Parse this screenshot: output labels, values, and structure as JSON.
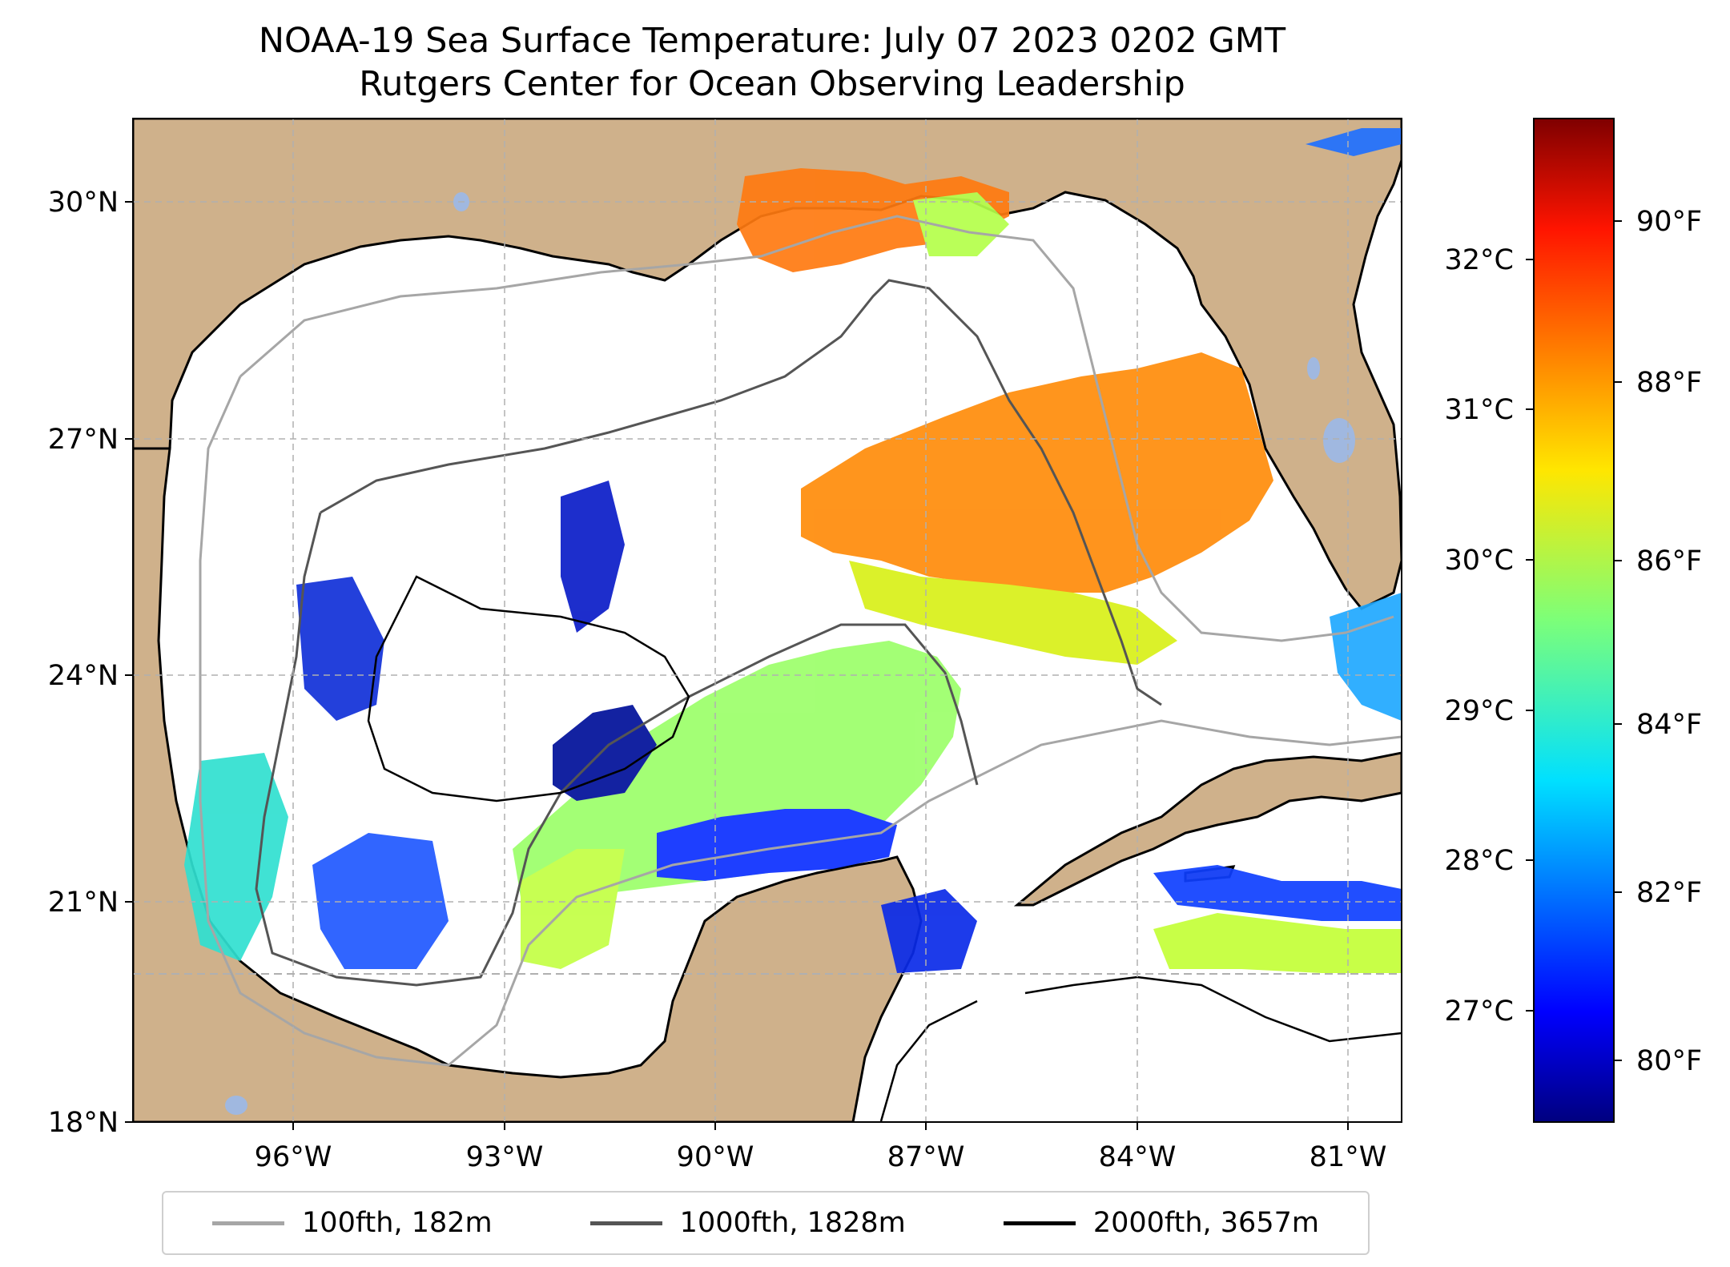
{
  "title": {
    "line1": "NOAA-19 Sea Surface Temperature: July 07 2023 0202 GMT",
    "line2": "Rutgers Center for Ocean Observing Leadership"
  },
  "map": {
    "lat_ticks": [
      "30°N",
      "27°N",
      "24°N",
      "21°N",
      "18°N"
    ],
    "lon_ticks": [
      "96°W",
      "93°W",
      "90°W",
      "87°W",
      "84°W",
      "81°W"
    ],
    "lat_range": [
      18,
      31
    ],
    "lon_range": [
      -98.3,
      -80.4
    ],
    "land_color": "#cfb18b",
    "lake_color": "#a0b8e0",
    "grid": "dashed"
  },
  "colorbar": {
    "celsius_ticks": [
      "32°C",
      "31°C",
      "30°C",
      "29°C",
      "28°C",
      "27°C"
    ],
    "fahrenheit_ticks": [
      "90°F",
      "88°F",
      "86°F",
      "84°F",
      "82°F",
      "80°F"
    ],
    "colormap": "jet",
    "fahrenheit_range": [
      79.2,
      91.5
    ]
  },
  "legend": {
    "items": [
      {
        "label": "100fth, 182m",
        "color": "#a6a6a6"
      },
      {
        "label": "1000fth, 1828m",
        "color": "#555555"
      },
      {
        "label": "2000fth, 3657m",
        "color": "#000000"
      }
    ]
  }
}
